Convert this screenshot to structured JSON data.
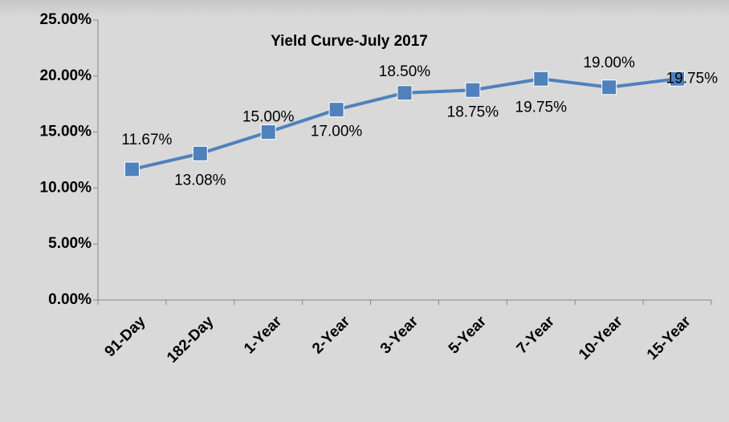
{
  "chart_data": {
    "type": "line",
    "title": "Yield Curve-July 2017",
    "categories": [
      "91-Day",
      "182-Day",
      "1-Year",
      "2-Year",
      "3-Year",
      "5-Year",
      "7-Year",
      "10-Year",
      "15-Year"
    ],
    "series": [
      {
        "name": "Yield",
        "color": "#4f81bd",
        "values": [
          11.67,
          13.08,
          15.0,
          17.0,
          18.5,
          18.75,
          19.75,
          19.0,
          19.75
        ],
        "value_labels": [
          "11.67%",
          "13.08%",
          "15.00%",
          "17.00%",
          "18.50%",
          "18.75%",
          "19.75%",
          "19.00%",
          "19.75%"
        ]
      }
    ],
    "ylim": [
      0,
      25
    ],
    "yticks": [
      {
        "value": 0,
        "label": "0.00%"
      },
      {
        "value": 5,
        "label": "5.00%"
      },
      {
        "value": 10,
        "label": "10.00%"
      },
      {
        "value": 15,
        "label": "15.00%"
      },
      {
        "value": 20,
        "label": "20.00%"
      },
      {
        "value": 25,
        "label": "25.00%"
      }
    ]
  }
}
